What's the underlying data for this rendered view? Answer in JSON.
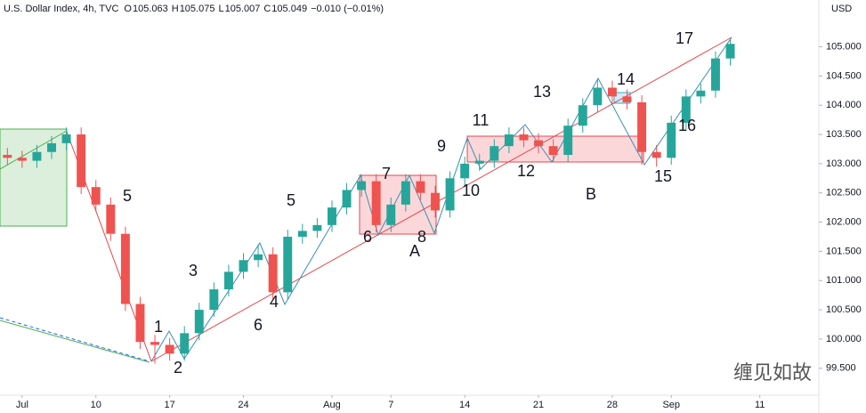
{
  "chart_data": {
    "type": "candlestick",
    "title": "U.S. Dollar Index, 4h, TVC",
    "ohlc": [
      {
        "label": "O",
        "value": "105.063"
      },
      {
        "label": "H",
        "value": "105.075"
      },
      {
        "label": "L",
        "value": "105.007"
      },
      {
        "label": "C",
        "value": "105.049"
      }
    ],
    "change": "−0.010 (−0.01%)",
    "y_unit": "USD",
    "watermark": "缠见如故",
    "x": [
      -6,
      -5,
      -4,
      -3,
      -2,
      -1,
      0,
      1,
      2,
      3,
      4,
      5,
      6,
      7,
      8,
      9,
      10,
      11,
      12,
      13,
      14,
      15,
      16,
      17,
      18,
      19,
      20,
      21,
      22,
      23,
      24,
      25,
      26,
      27,
      28,
      29,
      30,
      31,
      32,
      33,
      34,
      35,
      36,
      37,
      38,
      39,
      40,
      41,
      42,
      43
    ],
    "open": [
      103.15,
      103.1,
      103.05,
      103.2,
      103.35,
      103.5,
      102.6,
      102.3,
      101.8,
      100.6,
      99.95,
      99.9,
      99.75,
      100.1,
      100.5,
      100.85,
      101.15,
      101.35,
      101.45,
      100.8,
      101.75,
      101.85,
      101.95,
      102.25,
      102.55,
      102.7,
      101.95,
      102.3,
      102.7,
      102.5,
      102.2,
      102.75,
      103.0,
      103.05,
      103.3,
      103.5,
      103.4,
      103.3,
      103.15,
      103.65,
      104.0,
      104.3,
      104.15,
      104.05,
      103.2,
      103.1,
      103.7,
      104.15,
      104.25,
      104.8
    ],
    "high": [
      103.27,
      103.22,
      103.32,
      103.47,
      103.62,
      103.62,
      102.72,
      102.42,
      101.92,
      100.72,
      100.07,
      100.02,
      100.22,
      100.62,
      100.97,
      101.27,
      101.47,
      101.62,
      101.57,
      101.87,
      101.97,
      102.07,
      102.37,
      102.67,
      102.82,
      102.82,
      102.42,
      102.82,
      102.82,
      102.62,
      102.87,
      103.12,
      103.17,
      103.42,
      103.62,
      103.62,
      103.52,
      103.42,
      103.77,
      104.12,
      104.45,
      104.42,
      104.27,
      104.17,
      103.32,
      103.82,
      104.27,
      104.37,
      104.92,
      105.13
    ],
    "low": [
      102.98,
      102.93,
      102.93,
      103.08,
      103.23,
      102.48,
      102.18,
      101.68,
      100.48,
      99.83,
      99.58,
      99.63,
      99.63,
      99.98,
      100.38,
      100.73,
      101.03,
      101.23,
      100.68,
      100.68,
      101.63,
      101.73,
      101.83,
      102.13,
      102.43,
      101.83,
      101.83,
      102.18,
      102.38,
      102.08,
      102.08,
      102.63,
      102.88,
      102.93,
      103.18,
      103.28,
      103.18,
      103.03,
      103.03,
      103.53,
      103.88,
      104.03,
      103.93,
      102.98,
      102.95,
      102.98,
      103.58,
      104.03,
      104.13,
      104.68
    ],
    "close": [
      103.1,
      103.05,
      103.2,
      103.35,
      103.5,
      102.6,
      102.3,
      101.8,
      100.6,
      99.95,
      99.9,
      99.75,
      100.1,
      100.5,
      100.85,
      101.15,
      101.35,
      101.45,
      100.8,
      101.75,
      101.85,
      101.95,
      102.25,
      102.55,
      102.7,
      101.95,
      102.3,
      102.7,
      102.5,
      102.2,
      102.75,
      103.0,
      103.05,
      103.3,
      103.5,
      103.4,
      103.3,
      103.15,
      103.65,
      104.0,
      104.3,
      104.15,
      104.05,
      103.2,
      103.1,
      103.7,
      104.15,
      104.25,
      104.8,
      105.05
    ],
    "colors": {
      "up": "#26a69a",
      "down": "#ef5350"
    },
    "xlim": [
      -6.5,
      49
    ],
    "xticks": [
      {
        "value": -5,
        "label": "Jul"
      },
      {
        "value": 0,
        "label": "10"
      },
      {
        "value": 5,
        "label": "17"
      },
      {
        "value": 10,
        "label": "24"
      },
      {
        "value": 16,
        "label": "Aug"
      },
      {
        "value": 20,
        "label": "7"
      },
      {
        "value": 25,
        "label": "14"
      },
      {
        "value": 30,
        "label": "21"
      },
      {
        "value": 35,
        "label": "28"
      },
      {
        "value": 39,
        "label": "Sep"
      },
      {
        "value": 45,
        "label": "11"
      }
    ],
    "ylim": [
      99.1,
      105.8
    ],
    "yticks": [
      {
        "value": 99.5,
        "label": "99.500"
      },
      {
        "value": 100,
        "label": "100.000"
      },
      {
        "value": 100.5,
        "label": "100.500"
      },
      {
        "value": 101,
        "label": "101.000"
      },
      {
        "value": 101.5,
        "label": "101.500"
      },
      {
        "value": 102,
        "label": "102.000"
      },
      {
        "value": 102.5,
        "label": "102.500"
      },
      {
        "value": 103,
        "label": "103.000"
      },
      {
        "value": 103.5,
        "label": "103.500"
      },
      {
        "value": 104,
        "label": "104.000"
      },
      {
        "value": 104.5,
        "label": "104.500"
      },
      {
        "value": 105,
        "label": "105.000"
      }
    ],
    "grid": false,
    "annotations": [
      {
        "text": "1",
        "color": "#22b5bf"
      },
      {
        "text": "2",
        "color": "#22b5bf"
      },
      {
        "text": "3",
        "color": "#22b5bf"
      },
      {
        "text": "4",
        "color": "#22b5bf"
      },
      {
        "text": "5",
        "color": "#22b5bf"
      },
      {
        "text": "5",
        "color": "#e5474d"
      },
      {
        "text": "6",
        "color": "#e5474d"
      },
      {
        "text": "6",
        "color": "#22b5bf"
      },
      {
        "text": "7",
        "color": "#22b5bf"
      },
      {
        "text": "8",
        "color": "#22b5bf"
      },
      {
        "text": "9",
        "color": "#22b5bf"
      },
      {
        "text": "10",
        "color": "#22b5bf"
      },
      {
        "text": "11",
        "color": "#22b5bf"
      },
      {
        "text": "12",
        "color": "#22b5bf"
      },
      {
        "text": "13",
        "color": "#22b5bf"
      },
      {
        "text": "14",
        "color": "#22b5bf"
      },
      {
        "text": "15",
        "color": "#22b5bf"
      },
      {
        "text": "16",
        "color": "#22b5bf"
      },
      {
        "text": "17",
        "color": "#22b5bf"
      },
      {
        "text": "A",
        "color": "#e5474d"
      },
      {
        "text": "B",
        "color": "#e5474d"
      }
    ]
  }
}
